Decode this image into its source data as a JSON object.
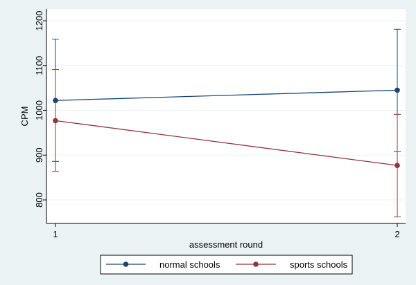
{
  "chart_data": {
    "type": "line",
    "title": "",
    "xlabel": "assessment round",
    "ylabel": "CPM",
    "x": [
      1,
      2
    ],
    "x_tick_labels": [
      "1",
      "2"
    ],
    "y_ticks": [
      800,
      900,
      1000,
      1100,
      1200
    ],
    "y_tick_labels": [
      "800",
      "900",
      "1000",
      "1100",
      "1200"
    ],
    "ylim": [
      750,
      1215
    ],
    "xlim": [
      0.95,
      2.05
    ],
    "grid": "horizontal",
    "legend_position": "bottom",
    "error_bars": true,
    "series": [
      {
        "name": "normal schools",
        "color": "#1a476f",
        "values": [
          1022,
          1045
        ],
        "lower": [
          886,
          908
        ],
        "upper": [
          1159,
          1181
        ]
      },
      {
        "name": "sports schools",
        "color": "#90353b",
        "values": [
          977,
          877
        ],
        "lower": [
          864,
          762
        ],
        "upper": [
          1091,
          991
        ]
      }
    ]
  }
}
